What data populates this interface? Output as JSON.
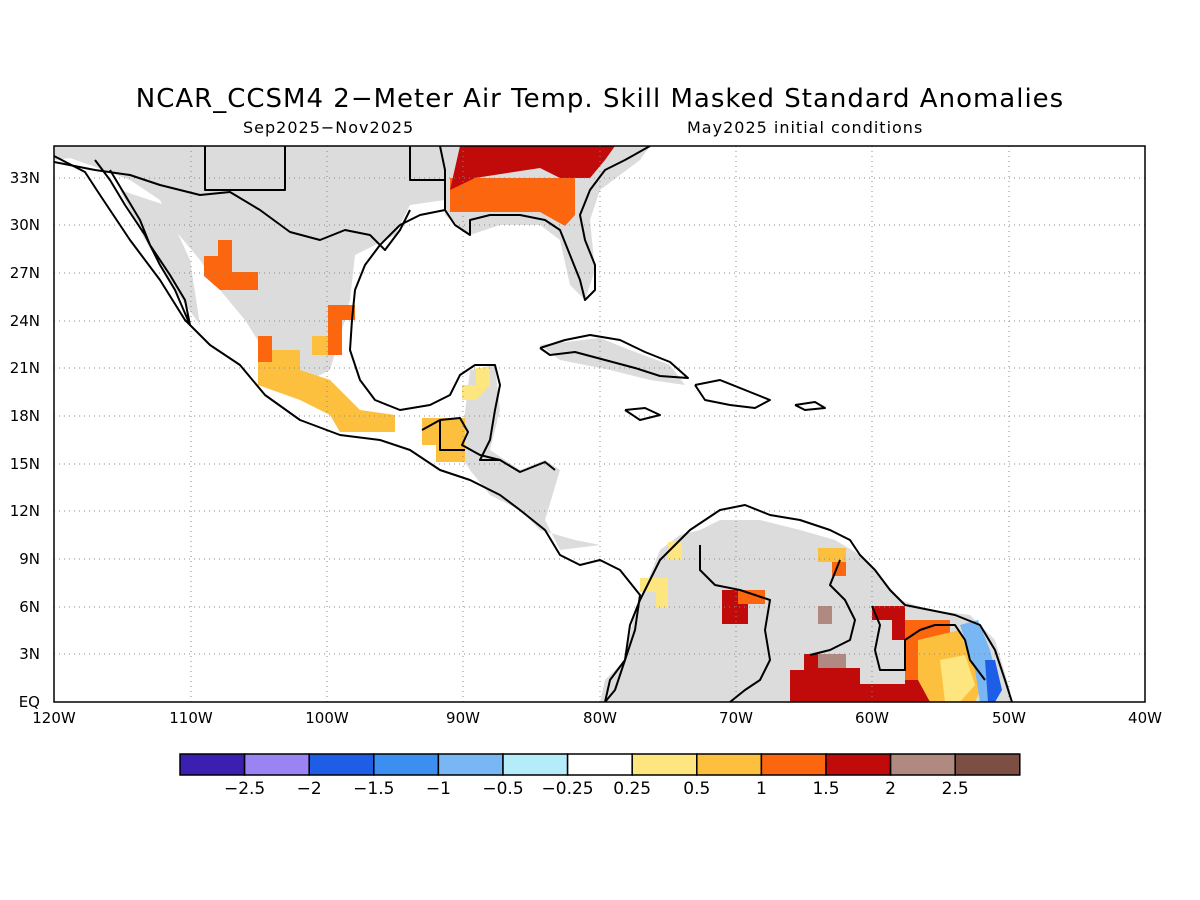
{
  "title": "NCAR_CCSM4 2−Meter Air Temp. Skill Masked Standard Anomalies",
  "subtitle_left": "Sep2025−Nov2025",
  "subtitle_right": "May2025 initial conditions",
  "map": {
    "lon_labels": [
      "120W",
      "110W",
      "100W",
      "90W",
      "80W",
      "70W",
      "60W",
      "50W",
      "40W"
    ],
    "lat_labels": [
      "EQ",
      "3N",
      "6N",
      "9N",
      "12N",
      "15N",
      "18N",
      "21N",
      "24N",
      "27N",
      "30N",
      "33N"
    ],
    "grid": "dotted",
    "mask_color": "#dcdcdc",
    "coastline_color": "#000000"
  },
  "colorbar": {
    "colors": [
      "#3a1fb0",
      "#9a84f4",
      "#1e5ee6",
      "#3c8ff0",
      "#78b6f4",
      "#b4ecfa",
      "#ffffff",
      "#fde57f",
      "#fdbf3e",
      "#fb660e",
      "#c10a0a",
      "#b08a80",
      "#7c4e44"
    ],
    "labels": [
      "−2.5",
      "−2",
      "−1.5",
      "−1",
      "−0.5",
      "−0.25",
      "0.25",
      "0.5",
      "1",
      "1.5",
      "2",
      "2.5"
    ]
  }
}
